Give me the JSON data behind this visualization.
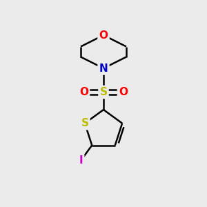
{
  "background_color": "#ebebeb",
  "bond_color": "#000000",
  "bond_width": 1.8,
  "atom_colors": {
    "O": "#ff0000",
    "N": "#0000cc",
    "S": "#bbbb00",
    "I": "#cc00cc"
  },
  "font_size_atom": 11
}
